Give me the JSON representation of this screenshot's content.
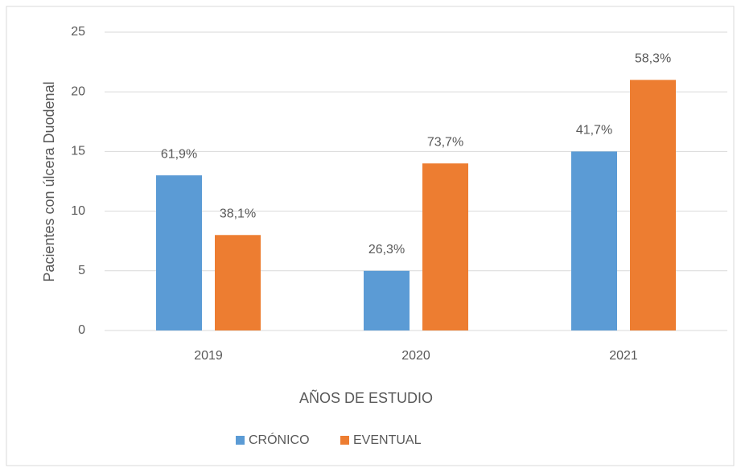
{
  "chart_data": {
    "type": "bar",
    "y_label": "Pacientes con úlcera Duodenal",
    "x_label": "AÑOS DE ESTUDIO",
    "categories": [
      "2019",
      "2020",
      "2021"
    ],
    "series": [
      {
        "name": "CRÓNICO",
        "color": "#5b9bd5",
        "values": [
          13,
          5,
          15
        ],
        "annotations": [
          "61,9%",
          "26,3%",
          "41,7%"
        ]
      },
      {
        "name": "EVENTUAL",
        "color": "#ed7d31",
        "values": [
          8,
          14,
          21
        ],
        "annotations": [
          "38,1%",
          "73,7%",
          "58,3%"
        ]
      }
    ],
    "ylim": [
      0,
      25
    ],
    "yticks": [
      0,
      5,
      10,
      15,
      20,
      25
    ],
    "grid": true,
    "legend": "bottom"
  }
}
